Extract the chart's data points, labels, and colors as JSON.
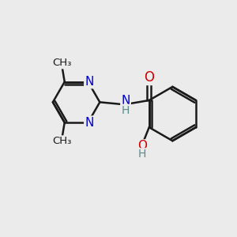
{
  "bg_color": "#ebebeb",
  "bond_color": "#1a1a1a",
  "bond_width": 1.8,
  "atom_colors": {
    "N": "#0000cc",
    "O": "#cc0000",
    "H": "#5a8a8a"
  },
  "font_size_atom": 11,
  "xlim": [
    0,
    10
  ],
  "ylim": [
    1,
    9
  ]
}
